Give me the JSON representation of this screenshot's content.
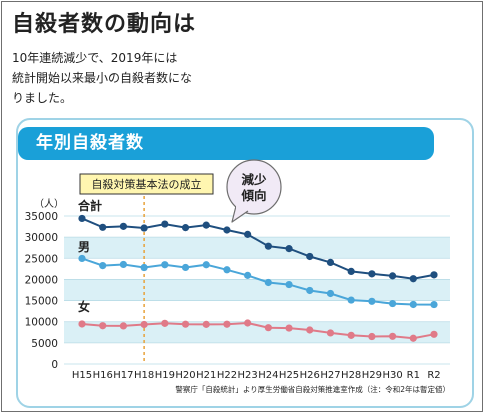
{
  "page": {
    "title": "自殺者数の動向は",
    "lead": [
      "10年連続減少で、2019年には",
      "統計開始以来最小の自殺者数にな",
      "りました。"
    ]
  },
  "card_title": "年別自殺者数",
  "annotation": {
    "policy_label": "自殺対策基本法の成立",
    "callout": [
      "減少",
      "傾向"
    ]
  },
  "source": "警察庁「自殺統計」より厚生労働省自殺対策推進室作成（注：令和2年は暫定値）",
  "colors": {
    "total": "#1f4f7f",
    "male": "#4aa6d9",
    "female": "#e07a88",
    "band": "#daf0f6",
    "header": "#1aa0d8"
  },
  "chart_data": {
    "type": "line",
    "title": "年別自殺者数",
    "ylabel": "（人）",
    "xlabel": "",
    "categories": [
      "H15",
      "H16",
      "H17",
      "H18",
      "H19",
      "H20",
      "H21",
      "H22",
      "H23",
      "H24",
      "H25",
      "H26",
      "H27",
      "H28",
      "H29",
      "H30",
      "R1",
      "R2"
    ],
    "ylim": [
      0,
      35000
    ],
    "yticks": [
      0,
      5000,
      10000,
      15000,
      20000,
      25000,
      30000,
      35000
    ],
    "grid": true,
    "series": [
      {
        "name": "合計",
        "values": [
          34427,
          32325,
          32552,
          32155,
          33093,
          32249,
          32845,
          31690,
          30651,
          27858,
          27283,
          25427,
          24025,
          21897,
          21321,
          20840,
          20169,
          21081
        ]
      },
      {
        "name": "男",
        "values": [
          24963,
          23272,
          23540,
          22813,
          23478,
          22831,
          23472,
          22283,
          20955,
          19273,
          18787,
          17386,
          16681,
          15121,
          14826,
          14290,
          14078,
          14055
        ]
      },
      {
        "name": "女",
        "values": [
          9464,
          9053,
          9012,
          9342,
          9615,
          9418,
          9373,
          9407,
          9696,
          8585,
          8496,
          8041,
          7344,
          6776,
          6495,
          6550,
          6091,
          7026
        ]
      }
    ]
  }
}
